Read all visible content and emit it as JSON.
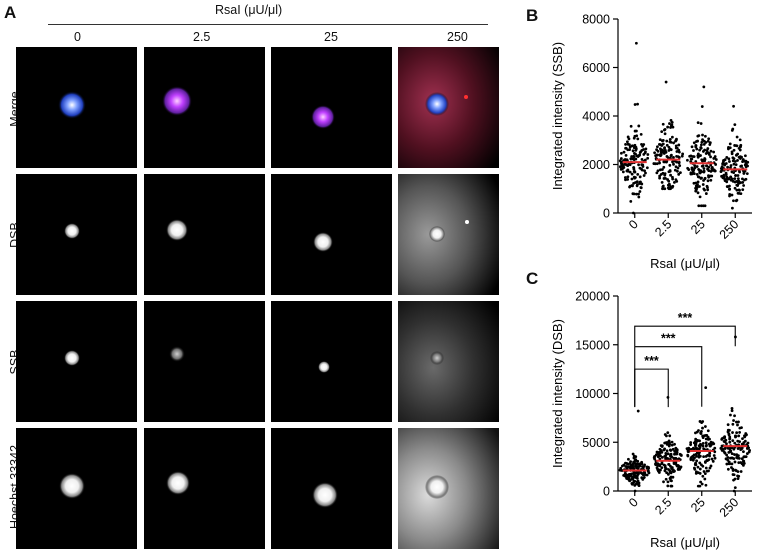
{
  "panel_labels": {
    "a": "A",
    "b": "B",
    "c": "C"
  },
  "panel_a": {
    "header": "RsaI (μU/μl)",
    "concentrations": [
      "0",
      "2.5",
      "25",
      "250"
    ],
    "rows": [
      "Merge",
      "DSB",
      "SSB",
      "Hoechst 33342"
    ],
    "colors": {
      "merge_blue": "#3b6bff",
      "merge_magenta": "#c040ff",
      "merge_red": "#ff2020",
      "grayscale": "#ffffff"
    }
  },
  "chart_data": [
    {
      "type": "scatter",
      "panel": "B",
      "categories": [
        "0",
        "2.5",
        "25",
        "250"
      ],
      "xlabel": "RsaI (μU/μl)",
      "ylabel": "Integrated intensity (SSB)",
      "ylim": [
        0,
        8000
      ],
      "yticks": [
        0,
        2000,
        4000,
        6000,
        8000
      ],
      "means": [
        2100,
        2200,
        2050,
        1800
      ],
      "spread": [
        {
          "min": 0,
          "max": 7000
        },
        {
          "min": 1000,
          "max": 5400
        },
        {
          "min": 300,
          "max": 5200
        },
        {
          "min": 200,
          "max": 4400
        }
      ],
      "point_color": "#000000",
      "mean_color": "#e03030"
    },
    {
      "type": "scatter",
      "panel": "C",
      "categories": [
        "0",
        "2.5",
        "25",
        "250"
      ],
      "xlabel": "RsaI (μU/μl)",
      "ylabel": "Integrated intensity (DSB)",
      "ylim": [
        0,
        20000
      ],
      "yticks": [
        0,
        5000,
        10000,
        15000,
        20000
      ],
      "means": [
        2100,
        3100,
        4100,
        4600
      ],
      "spread": [
        {
          "min": 0,
          "max": 8200
        },
        {
          "min": 500,
          "max": 9600
        },
        {
          "min": 500,
          "max": 10600
        },
        {
          "min": 0,
          "max": 15800
        }
      ],
      "significance": [
        {
          "from": "0",
          "to": "2.5",
          "label": "***"
        },
        {
          "from": "0",
          "to": "25",
          "label": "***"
        },
        {
          "from": "0",
          "to": "250",
          "label": "***"
        }
      ],
      "point_color": "#000000",
      "mean_color": "#e03030"
    }
  ]
}
